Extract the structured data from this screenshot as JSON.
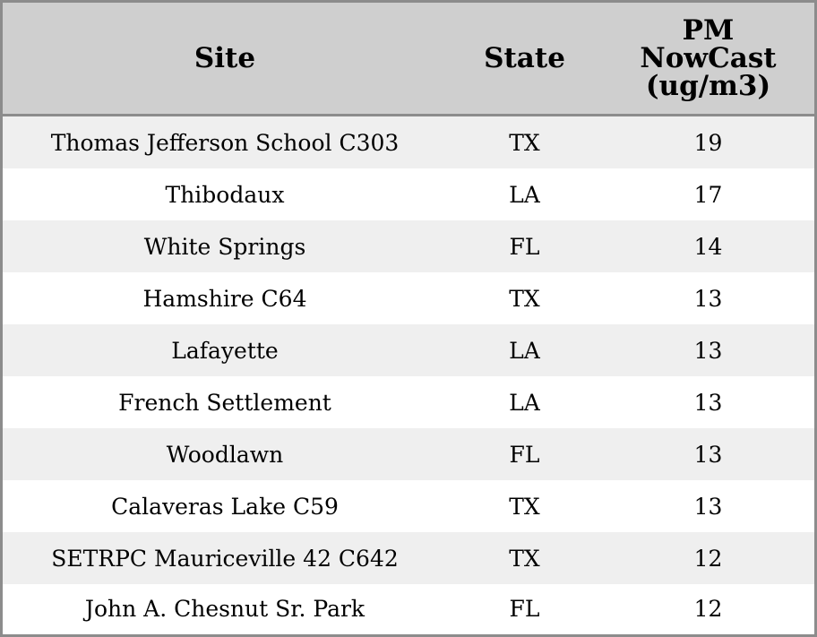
{
  "chart_data": {
    "type": "table",
    "columns": [
      "Site",
      "State",
      "PM NowCast (ug/m3)"
    ],
    "header_lines": {
      "site": [
        "Site"
      ],
      "state": [
        "State"
      ],
      "pm": [
        "PM",
        "NowCast",
        "(ug/m3)"
      ]
    },
    "rows": [
      {
        "site": "Thomas Jefferson School C303",
        "state": "TX",
        "pm": "19"
      },
      {
        "site": "Thibodaux",
        "state": "LA",
        "pm": "17"
      },
      {
        "site": "White Springs",
        "state": "FL",
        "pm": "14"
      },
      {
        "site": "Hamshire C64",
        "state": "TX",
        "pm": "13"
      },
      {
        "site": "Lafayette",
        "state": "LA",
        "pm": "13"
      },
      {
        "site": "French Settlement",
        "state": "LA",
        "pm": "13"
      },
      {
        "site": "Woodlawn",
        "state": "FL",
        "pm": "13"
      },
      {
        "site": "Calaveras Lake C59",
        "state": "TX",
        "pm": "13"
      },
      {
        "site": "SETRPC Mauriceville 42 C642",
        "state": "TX",
        "pm": "12"
      },
      {
        "site": "John A. Chesnut Sr. Park",
        "state": "FL",
        "pm": "12"
      }
    ],
    "colors": {
      "header_bg": "#cfcfcf",
      "row_alt_bg": "#efefef",
      "row_bg": "#ffffff",
      "border": "#8c8c8c"
    }
  }
}
